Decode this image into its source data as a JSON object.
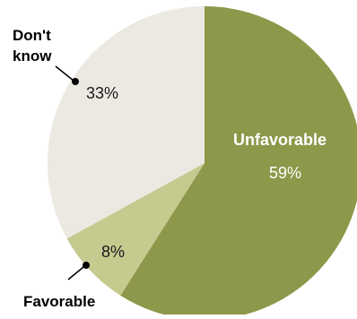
{
  "chart_data": {
    "type": "pie",
    "slices": [
      {
        "label": "Unfavorable",
        "value": 59,
        "value_label": "59%",
        "color": "#8d984a"
      },
      {
        "label": "Favorable",
        "value": 8,
        "value_label": "8%",
        "color": "#c5ca8f"
      },
      {
        "label": "Don't know",
        "value": 33,
        "value_label": "33%",
        "color": "#ece9e2"
      }
    ],
    "dont_know_label_lines": [
      "Don't",
      "know"
    ]
  }
}
